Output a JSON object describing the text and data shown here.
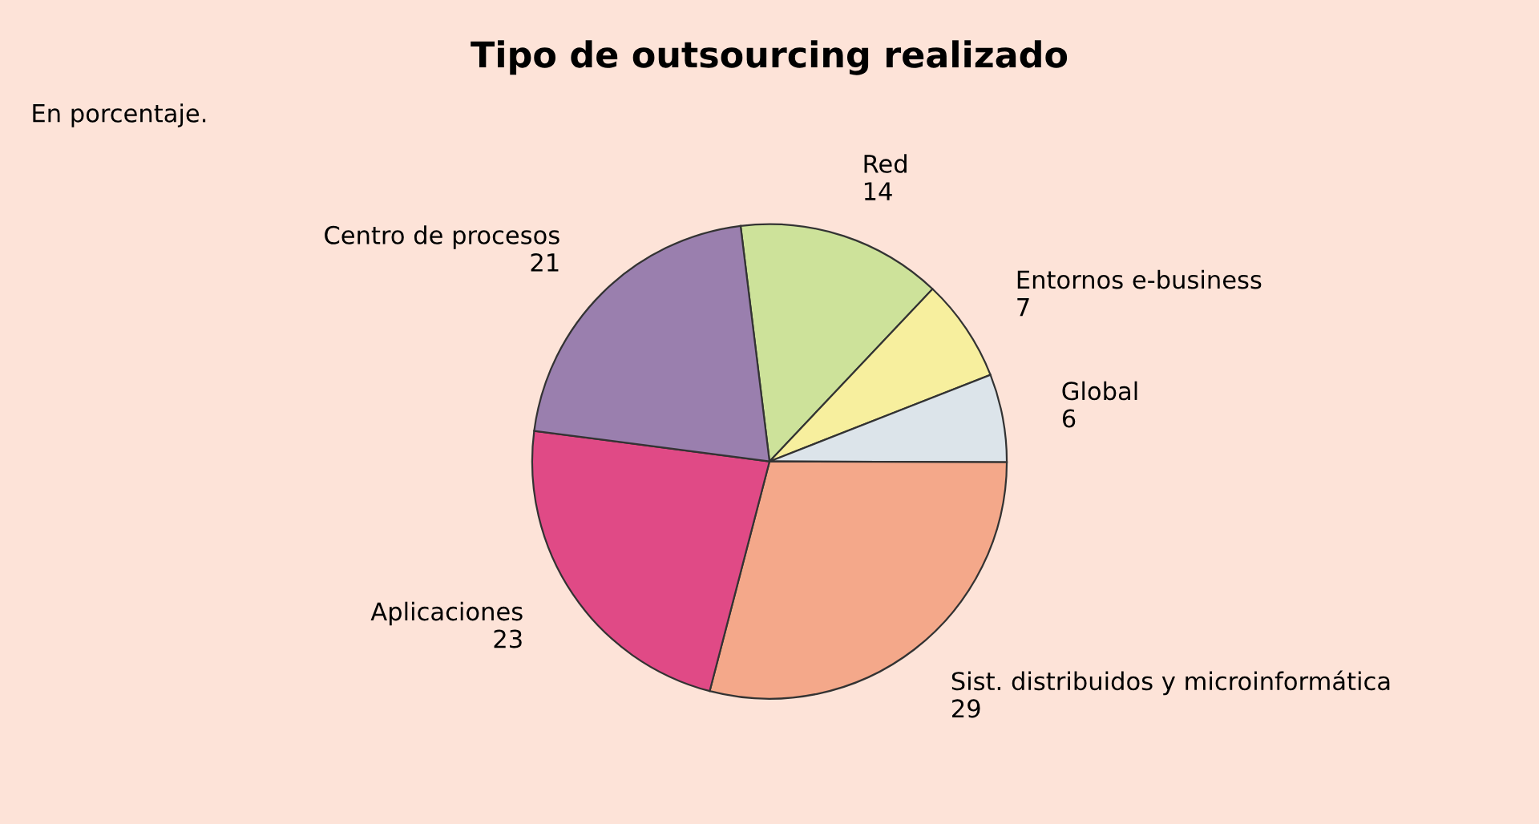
{
  "chart_data": {
    "type": "pie",
    "title": "Tipo de outsourcing realizado",
    "subtitle": "En porcentaje.",
    "categories": [
      "Red",
      "Entornos e-business",
      "Global",
      "Sist. distribuidos y microinformática",
      "Aplicaciones",
      "Centro de procesos"
    ],
    "values": [
      14,
      7,
      6,
      29,
      23,
      21
    ],
    "data_labels": true,
    "colors": [
      "#cde29a",
      "#f7ef9e",
      "#dce4ea",
      "#f4a88a",
      "#e04a86",
      "#9a7fae"
    ]
  }
}
